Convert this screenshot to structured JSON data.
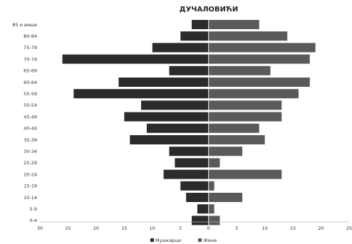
{
  "chart_data": {
    "type": "bar",
    "orientation": "horizontal",
    "title": "ДУЧАЛОВИЋИ",
    "categories": [
      "0-4",
      "5-9",
      "10-14",
      "15-19",
      "20-24",
      "25-29",
      "30-34",
      "35-39",
      "40-44",
      "45-49",
      "50-54",
      "55-59",
      "60-64",
      "65-69",
      "70-74",
      "75-79",
      "80-84",
      "85 и више"
    ],
    "series": [
      {
        "name": "Мушкарци",
        "color": "#2b2b2b",
        "values": [
          -3,
          -2,
          -4,
          -5,
          -8,
          -6,
          -7,
          -14,
          -11,
          -15,
          -12,
          -24,
          -16,
          -7,
          -26,
          -10,
          -5,
          -3
        ]
      },
      {
        "name": "Жене",
        "color": "#5a5a5a",
        "values": [
          2,
          1,
          6,
          1,
          13,
          2,
          6,
          10,
          9,
          13,
          13,
          16,
          18,
          11,
          18,
          19,
          14,
          9
        ]
      }
    ],
    "xticks": [
      "30",
      "25",
      "20",
      "15",
      "10",
      "5",
      "0",
      "5",
      "10",
      "15",
      "20",
      "25"
    ],
    "xlim": [
      -30,
      25
    ],
    "grid": false,
    "legend_position": "bottom"
  }
}
